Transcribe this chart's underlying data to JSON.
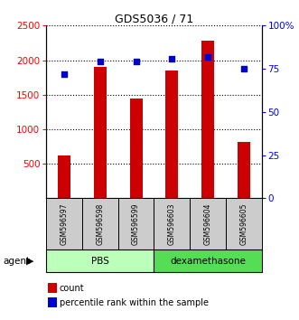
{
  "title": "GDS5036 / 71",
  "samples": [
    "GSM596597",
    "GSM596598",
    "GSM596599",
    "GSM596603",
    "GSM596604",
    "GSM596605"
  ],
  "counts": [
    620,
    1900,
    1440,
    1850,
    2280,
    820
  ],
  "percentiles": [
    72,
    79,
    79,
    81,
    82,
    75
  ],
  "groups": [
    "PBS",
    "PBS",
    "PBS",
    "dexamethasone",
    "dexamethasone",
    "dexamethasone"
  ],
  "bar_color": "#cc0000",
  "dot_color": "#0000cc",
  "left_ylim": [
    0,
    2500
  ],
  "right_ylim": [
    0,
    100
  ],
  "left_yticks": [
    500,
    1000,
    1500,
    2000,
    2500
  ],
  "right_yticks": [
    0,
    25,
    50,
    75,
    100
  ],
  "right_yticklabels": [
    "0",
    "25",
    "50",
    "75",
    "100%"
  ],
  "group_pbs_color": "#bbffbb",
  "group_dex_color": "#55dd55",
  "sample_bg_color": "#cccccc",
  "bar_width": 0.35,
  "dot_size": 25
}
